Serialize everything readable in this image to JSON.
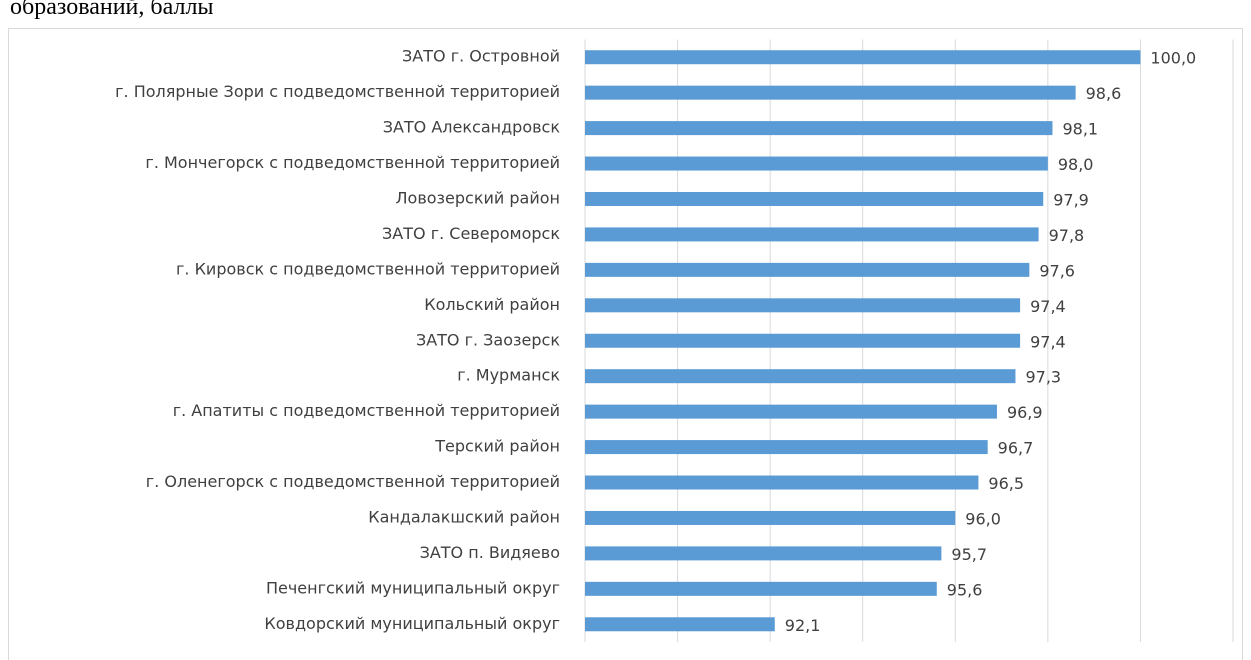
{
  "chart_data": {
    "type": "barh",
    "title": "образований, баллы",
    "categories": [
      "ЗАТО г. Островной",
      "г. Полярные Зори с подведомственной территорией",
      "ЗАТО Александровск",
      "г. Мончегорск с подведомственной территорией",
      "Ловозерский район",
      "ЗАТО г. Североморск",
      "г. Кировск с подведомственной территорией",
      "Кольский район",
      "ЗАТО г. Заозерск",
      "г. Мурманск",
      "г. Апатиты с подведомственной территорией",
      "Терский район",
      "г. Оленегорск с подведомственной территорией",
      "Кандалакшский район",
      "ЗАТО п. Видяево",
      "Печенгский муниципальный округ",
      "Ковдорский муниципальный округ"
    ],
    "values": [
      100.0,
      98.6,
      98.1,
      98.0,
      97.9,
      97.8,
      97.6,
      97.4,
      97.4,
      97.3,
      96.9,
      96.7,
      96.5,
      96.0,
      95.7,
      95.6,
      92.1
    ],
    "value_labels": [
      "100,0",
      "98,6",
      "98,1",
      "98,0",
      "97,9",
      "97,8",
      "97,6",
      "97,4",
      "97,4",
      "97,3",
      "96,9",
      "96,7",
      "96,5",
      "96,0",
      "95,7",
      "95,6",
      "92,1"
    ],
    "color": "#5b9bd5",
    "xlim": [
      88,
      102
    ],
    "xticks": [
      88,
      90,
      92,
      94,
      96,
      98,
      100,
      102
    ],
    "grid": true
  }
}
